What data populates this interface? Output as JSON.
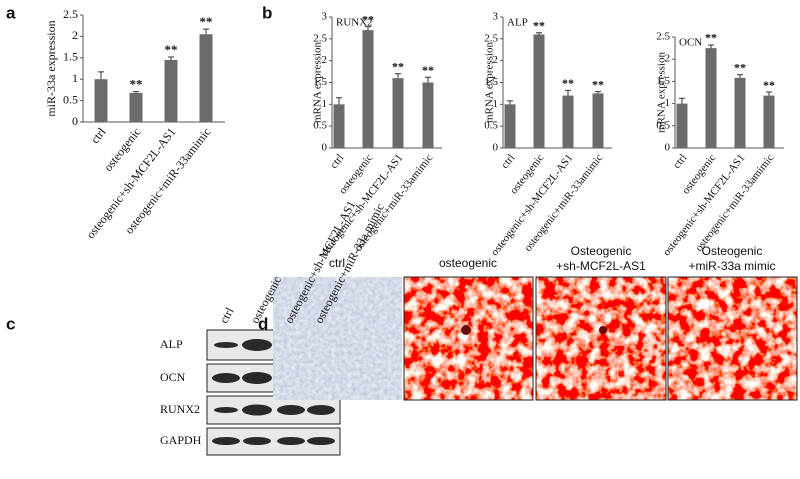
{
  "panel_labels": [
    "a",
    "b",
    "c",
    "d"
  ],
  "chart_data": [
    {
      "type": "bar",
      "y_label": "miR-33a expression",
      "categories": [
        "ctrl",
        "osteogenic",
        "osteogenic+sh-MCF2L-AS1",
        "osteogenic+miR-33amimic"
      ],
      "values": [
        1.0,
        0.68,
        1.45,
        2.05
      ],
      "errors": [
        0.17,
        0.03,
        0.07,
        0.12
      ],
      "value_annotations": [
        null,
        "**",
        "**",
        "**"
      ],
      "ylim": [
        0,
        2.5
      ],
      "yticks": [
        0,
        0.5,
        1,
        1.5,
        2,
        2.5
      ],
      "color": "#6b6b6b"
    },
    {
      "type": "bar",
      "title": "RUNX2",
      "y_label": "mRNA expression",
      "categories": [
        "ctrl",
        "osteogenic",
        "osteogenic+sh-MCF2L-AS1",
        "osteogenic+miR-33amimic"
      ],
      "values": [
        1.0,
        2.7,
        1.6,
        1.5
      ],
      "errors": [
        0.15,
        0.08,
        0.1,
        0.12
      ],
      "value_annotations": [
        null,
        "**",
        "**",
        "**"
      ],
      "ylim": [
        0,
        3
      ],
      "yticks": [
        0,
        0.5,
        1,
        1.5,
        2,
        2.5,
        3
      ],
      "color": "#6b6b6b"
    },
    {
      "type": "bar",
      "title": "ALP",
      "y_label": "mRNA expression",
      "categories": [
        "ctrl",
        "osteogenic",
        "osteogenic+sh-MCF2L-AS1",
        "osteogenic+miR-33amimic"
      ],
      "values": [
        1.0,
        2.6,
        1.2,
        1.25
      ],
      "errors": [
        0.08,
        0.04,
        0.12,
        0.04
      ],
      "value_annotations": [
        null,
        "**",
        "**",
        "**"
      ],
      "ylim": [
        0,
        3
      ],
      "yticks": [
        0,
        0.5,
        1,
        1.5,
        2,
        2.5,
        3
      ],
      "color": "#6b6b6b"
    },
    {
      "type": "bar",
      "title": "OCN",
      "y_label": "mRNA expression",
      "categories": [
        "ctrl",
        "osteogenic",
        "osteogenic+sh-MCF2L-AS1",
        "osteogenic+miR-33amimic"
      ],
      "values": [
        1.0,
        2.25,
        1.58,
        1.18
      ],
      "errors": [
        0.12,
        0.07,
        0.07,
        0.08
      ],
      "value_annotations": [
        null,
        "**",
        "**",
        "**"
      ],
      "ylim": [
        0,
        2.5
      ],
      "yticks": [
        0,
        0.5,
        1,
        1.5,
        2,
        2.5
      ],
      "color": "#6b6b6b"
    }
  ],
  "western_blot": {
    "columns": [
      "ctrl",
      "osteogenic",
      "osteogenic+sh-MCF2L-AS1",
      "osteogenic+miR-33a mimic"
    ],
    "rows": [
      "ALP",
      "OCN",
      "RUNX2",
      "GAPDH"
    ]
  },
  "staining": {
    "labels": [
      [
        "ctrl"
      ],
      [
        "osteogenic"
      ],
      [
        "Osteogenic",
        "+sh-MCF2L-AS1"
      ],
      [
        "Osteogenic",
        "+miR-33a mimic"
      ]
    ]
  }
}
